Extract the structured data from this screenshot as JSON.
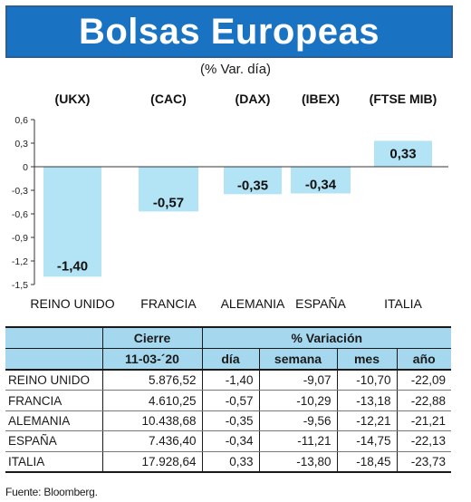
{
  "header": {
    "title": "Bolsas Europeas",
    "subtitle": "(% Var. día)"
  },
  "chart_data": {
    "type": "bar",
    "codes": [
      "(UKX)",
      "(CAC)",
      "(DAX)",
      "(IBEX)",
      "(FTSE MIB)"
    ],
    "categories": [
      "REINO UNIDO",
      "FRANCIA",
      "ALEMANIA",
      "ESPAÑA",
      "ITALIA"
    ],
    "values": [
      -1.4,
      -0.57,
      -0.35,
      -0.34,
      0.33
    ],
    "value_labels": [
      "-1,40",
      "-0,57",
      "-0,35",
      "-0,34",
      "0,33"
    ],
    "yticks": [
      0.6,
      0.3,
      0,
      -0.3,
      -0.6,
      -0.9,
      -1.2,
      -1.5
    ],
    "ytick_labels": [
      "0,6",
      "0,3",
      "0",
      "-0,3",
      "-0,6",
      "-0,9",
      "-1,2",
      "-1,5"
    ],
    "ylim": [
      -1.5,
      0.6
    ],
    "bar_color": "#b3e4f5",
    "grid": false
  },
  "table": {
    "header_cierre": "Cierre",
    "header_date": "11-03-´20",
    "header_variacion": "% Variación",
    "columns": [
      "día",
      "semana",
      "mes",
      "año"
    ],
    "rows": [
      {
        "name": "REINO UNIDO",
        "cierre": "5.876,52",
        "dia": "-1,40",
        "semana": "-9,07",
        "mes": "-10,70",
        "ano": "-22,09"
      },
      {
        "name": "FRANCIA",
        "cierre": "4.610,25",
        "dia": "-0,57",
        "semana": "-10,29",
        "mes": "-13,18",
        "ano": "-22,88"
      },
      {
        "name": "ALEMANIA",
        "cierre": "10.438,68",
        "dia": "-0,35",
        "semana": "-9,56",
        "mes": "-12,21",
        "ano": "-21,21"
      },
      {
        "name": "ESPAÑA",
        "cierre": "7.436,40",
        "dia": "-0,34",
        "semana": "-11,21",
        "mes": "-14,75",
        "ano": "-22,13"
      },
      {
        "name": "ITALIA",
        "cierre": "17.928,64",
        "dia": "0,33",
        "semana": "-13,80",
        "mes": "-18,45",
        "ano": "-23,73"
      }
    ]
  },
  "source": "Fuente: Bloomberg."
}
